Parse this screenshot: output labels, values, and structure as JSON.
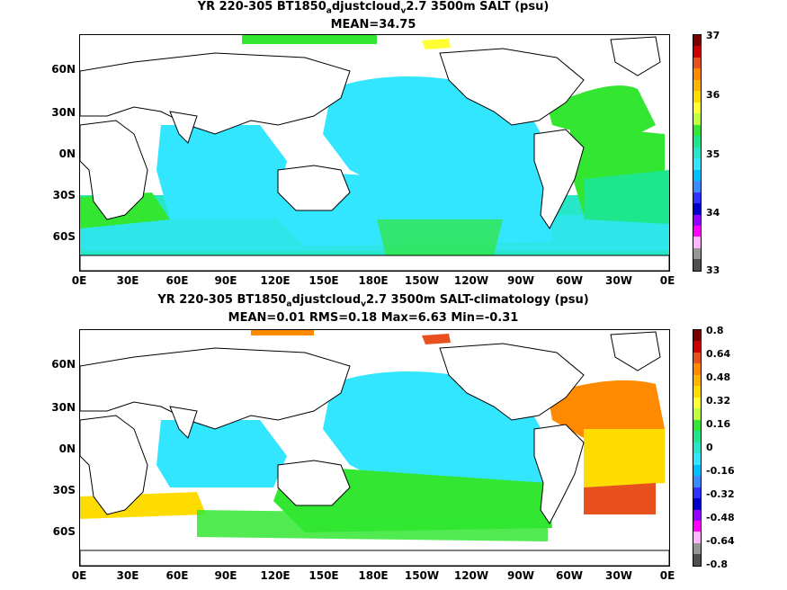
{
  "map_top": {
    "title_part1": "YR 220-305 BT1850",
    "title_sub1": "a",
    "title_part2": "djustcloud",
    "title_sub2": "v",
    "title_part3": "2.7 3500m SALT (psu)",
    "subtitle": "MEAN=34.75",
    "colorbar_labels": [
      "37",
      "36",
      "35",
      "34",
      "33"
    ],
    "colorbar_colors": [
      "#7a0000",
      "#c80000",
      "#e8501e",
      "#ff8a00",
      "#ffb400",
      "#ffdc00",
      "#ffff33",
      "#bfff3c",
      "#32e632",
      "#1ee68c",
      "#28e6c8",
      "#32e6ff",
      "#00bfff",
      "#3c8cff",
      "#3232ff",
      "#0000c8",
      "#9600ff",
      "#ff00ff",
      "#ffb4ff",
      "#969696",
      "#505050"
    ]
  },
  "map_bottom": {
    "title_part1": "YR 220-305 BT1850",
    "title_sub1": "a",
    "title_part2": "djustcloud",
    "title_sub2": "v",
    "title_part3": "2.7 3500m SALT-climatology (psu)",
    "subtitle": "MEAN=0.01   RMS=0.18   Max=6.63   Min=-0.31",
    "colorbar_labels": [
      "0.8",
      "0.64",
      "0.48",
      "0.32",
      "0.16",
      "0",
      "-0.16",
      "-0.32",
      "-0.48",
      "-0.64",
      "-0.8"
    ],
    "colorbar_colors": [
      "#7a0000",
      "#c80000",
      "#e8501e",
      "#ff8a00",
      "#ffb400",
      "#ffdc00",
      "#ffff33",
      "#bfff3c",
      "#32e632",
      "#1ee68c",
      "#28e6c8",
      "#32e6ff",
      "#00bfff",
      "#3c8cff",
      "#3232ff",
      "#0000c8",
      "#9600ff",
      "#ff00ff",
      "#ffb4ff",
      "#969696",
      "#505050"
    ]
  },
  "axes": {
    "lat_labels": [
      "60N",
      "30N",
      "0N",
      "30S",
      "60S"
    ],
    "lon_labels": [
      "0E",
      "30E",
      "60E",
      "90E",
      "120E",
      "150E",
      "180E",
      "150W",
      "120W",
      "90W",
      "60W",
      "30W",
      "0E"
    ]
  }
}
